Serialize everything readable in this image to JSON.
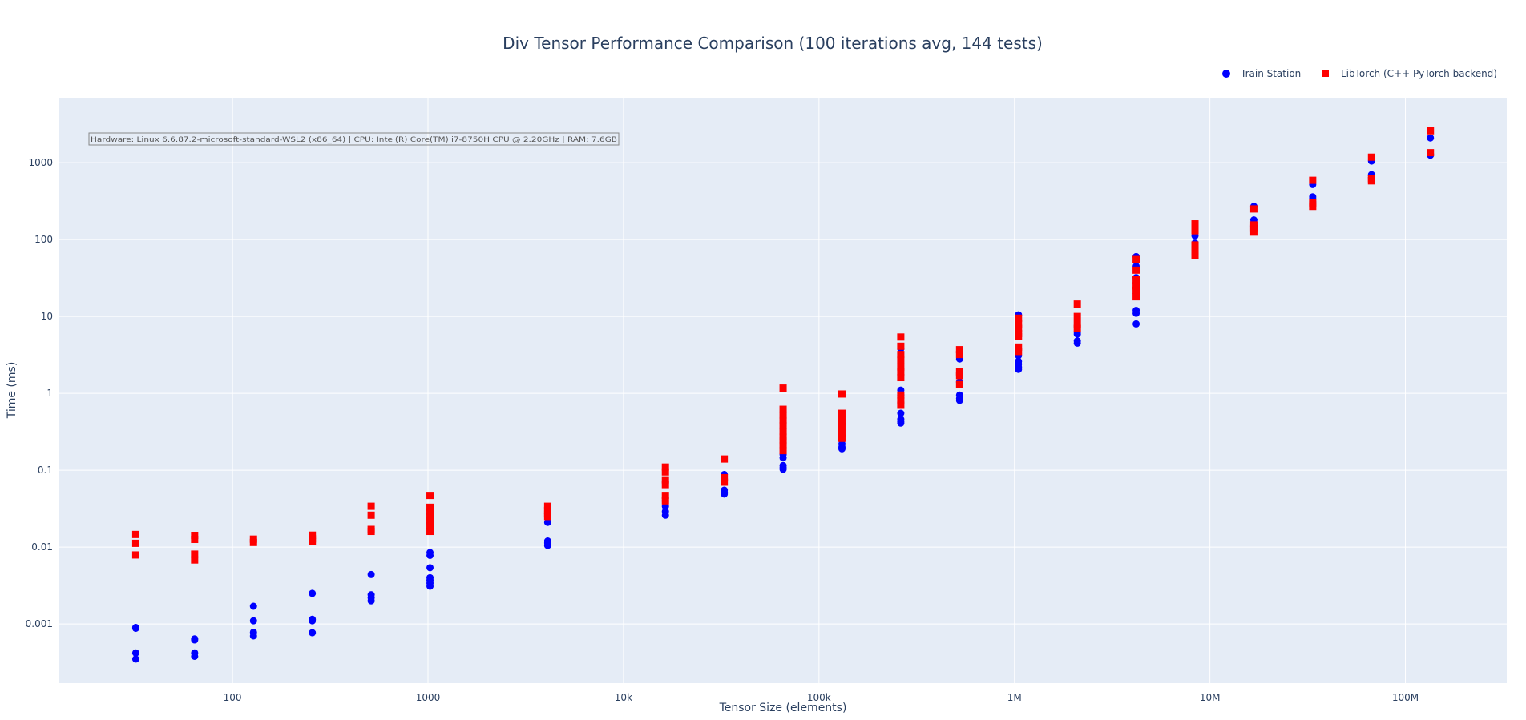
{
  "chart_data": {
    "type": "scatter",
    "title": "Div Tensor Performance Comparison (100 iterations avg, 144 tests)",
    "xlabel": "Tensor Size (elements)",
    "ylabel": "Time (ms)",
    "x_scale": "log",
    "y_scale": "log",
    "xlim": [
      13,
      330000000
    ],
    "ylim": [
      0.00017,
      7000
    ],
    "x_ticks": [
      {
        "value": 100,
        "label": "100"
      },
      {
        "value": 1000,
        "label": "1000"
      },
      {
        "value": 10000,
        "label": "10k"
      },
      {
        "value": 100000,
        "label": "100k"
      },
      {
        "value": 1000000,
        "label": "1M"
      },
      {
        "value": 10000000,
        "label": "10M"
      },
      {
        "value": 100000000,
        "label": "100M"
      }
    ],
    "y_ticks": [
      {
        "value": 0.001,
        "label": "0.001"
      },
      {
        "value": 0.01,
        "label": "0.01"
      },
      {
        "value": 0.1,
        "label": "0.1"
      },
      {
        "value": 1,
        "label": "1"
      },
      {
        "value": 10,
        "label": "10"
      },
      {
        "value": 100,
        "label": "100"
      },
      {
        "value": 1000,
        "label": "1000"
      }
    ],
    "grid": true,
    "legend": "top-right",
    "annotation": "Hardware: Linux 6.6.87.2-microsoft-standard-WSL2 (x86_64) | CPU: Intel(R) Core(TM) i7-8750H CPU @ 2.20GHz | RAM: 7.6GB",
    "series": [
      {
        "name": "Train Station",
        "color": "#0000ff",
        "marker": "circle",
        "points": [
          [
            32,
            0.0009
          ],
          [
            32,
            0.00088
          ],
          [
            32,
            0.00042
          ],
          [
            32,
            0.00035
          ],
          [
            64,
            0.00064
          ],
          [
            64,
            0.00062
          ],
          [
            64,
            0.00042
          ],
          [
            64,
            0.00038
          ],
          [
            128,
            0.0017
          ],
          [
            128,
            0.0011
          ],
          [
            128,
            0.00078
          ],
          [
            128,
            0.0007
          ],
          [
            256,
            0.0025
          ],
          [
            256,
            0.00115
          ],
          [
            256,
            0.0011
          ],
          [
            256,
            0.00077
          ],
          [
            512,
            0.0044
          ],
          [
            512,
            0.0024
          ],
          [
            512,
            0.0022
          ],
          [
            512,
            0.002
          ],
          [
            1024,
            0.0085
          ],
          [
            1024,
            0.0078
          ],
          [
            1024,
            0.0054
          ],
          [
            1024,
            0.004
          ],
          [
            1024,
            0.0037
          ],
          [
            1024,
            0.0034
          ],
          [
            1024,
            0.0031
          ],
          [
            4096,
            0.021
          ],
          [
            4096,
            0.012
          ],
          [
            4096,
            0.0113
          ],
          [
            4096,
            0.0105
          ],
          [
            16384,
            0.04
          ],
          [
            16384,
            0.034
          ],
          [
            16384,
            0.029
          ],
          [
            16384,
            0.026
          ],
          [
            32768,
            0.088
          ],
          [
            32768,
            0.055
          ],
          [
            32768,
            0.052
          ],
          [
            32768,
            0.049
          ],
          [
            65536,
            0.35
          ],
          [
            65536,
            0.16
          ],
          [
            65536,
            0.145
          ],
          [
            65536,
            0.115
          ],
          [
            65536,
            0.108
          ],
          [
            65536,
            0.103
          ],
          [
            131072,
            0.4
          ],
          [
            131072,
            0.22
          ],
          [
            131072,
            0.2
          ],
          [
            131072,
            0.19
          ],
          [
            262144,
            3.8
          ],
          [
            262144,
            1.1
          ],
          [
            262144,
            0.95
          ],
          [
            262144,
            0.55
          ],
          [
            262144,
            0.46
          ],
          [
            262144,
            0.43
          ],
          [
            262144,
            0.41
          ],
          [
            524288,
            2.8
          ],
          [
            524288,
            1.4
          ],
          [
            524288,
            0.95
          ],
          [
            524288,
            0.86
          ],
          [
            524288,
            0.81
          ],
          [
            1048576,
            10.5
          ],
          [
            1048576,
            3.1
          ],
          [
            1048576,
            2.6
          ],
          [
            1048576,
            2.4
          ],
          [
            1048576,
            2.2
          ],
          [
            1048576,
            2.05
          ],
          [
            2097152,
            6.2
          ],
          [
            2097152,
            5.9
          ],
          [
            2097152,
            4.8
          ],
          [
            2097152,
            4.5
          ],
          [
            4194304,
            60
          ],
          [
            4194304,
            45
          ],
          [
            4194304,
            32
          ],
          [
            4194304,
            12
          ],
          [
            4194304,
            11
          ],
          [
            4194304,
            8
          ],
          [
            8388608,
            112
          ],
          [
            8388608,
            90
          ],
          [
            8388608,
            80
          ],
          [
            8388608,
            72
          ],
          [
            16777216,
            270
          ],
          [
            16777216,
            180
          ],
          [
            16777216,
            165
          ],
          [
            16777216,
            150
          ],
          [
            33554432,
            520
          ],
          [
            33554432,
            360
          ],
          [
            33554432,
            340
          ],
          [
            33554432,
            310
          ],
          [
            67108864,
            1050
          ],
          [
            67108864,
            700
          ],
          [
            67108864,
            680
          ],
          [
            67108864,
            640
          ],
          [
            134217728,
            2100
          ],
          [
            134217728,
            1300
          ],
          [
            134217728,
            1250
          ]
        ]
      },
      {
        "name": "LibTorch (C++ PyTorch backend)",
        "color": "#ff0000",
        "marker": "square",
        "points": [
          [
            32,
            0.0146
          ],
          [
            32,
            0.0112
          ],
          [
            32,
            0.0079
          ],
          [
            64,
            0.0142
          ],
          [
            64,
            0.0126
          ],
          [
            64,
            0.0081
          ],
          [
            64,
            0.0068
          ],
          [
            128,
            0.0127
          ],
          [
            128,
            0.0115
          ],
          [
            256,
            0.0143
          ],
          [
            256,
            0.0128
          ],
          [
            256,
            0.0118
          ],
          [
            512,
            0.034
          ],
          [
            512,
            0.026
          ],
          [
            512,
            0.017
          ],
          [
            512,
            0.016
          ],
          [
            1024,
            0.047
          ],
          [
            1024,
            0.033
          ],
          [
            1024,
            0.029
          ],
          [
            1024,
            0.025
          ],
          [
            1024,
            0.022
          ],
          [
            1024,
            0.019
          ],
          [
            1024,
            0.016
          ],
          [
            4096,
            0.034
          ],
          [
            4096,
            0.03
          ],
          [
            4096,
            0.027
          ],
          [
            4096,
            0.025
          ],
          [
            16384,
            0.11
          ],
          [
            16384,
            0.095
          ],
          [
            16384,
            0.075
          ],
          [
            16384,
            0.065
          ],
          [
            16384,
            0.047
          ],
          [
            16384,
            0.04
          ],
          [
            32768,
            0.14
          ],
          [
            32768,
            0.08
          ],
          [
            32768,
            0.07
          ],
          [
            65536,
            1.17
          ],
          [
            65536,
            0.62
          ],
          [
            65536,
            0.52
          ],
          [
            65536,
            0.44
          ],
          [
            65536,
            0.38
          ],
          [
            65536,
            0.32
          ],
          [
            65536,
            0.27
          ],
          [
            65536,
            0.24
          ],
          [
            65536,
            0.21
          ],
          [
            65536,
            0.18
          ],
          [
            131072,
            0.98
          ],
          [
            131072,
            0.55
          ],
          [
            131072,
            0.45
          ],
          [
            131072,
            0.37
          ],
          [
            131072,
            0.3
          ],
          [
            131072,
            0.26
          ],
          [
            262144,
            5.4
          ],
          [
            262144,
            4.1
          ],
          [
            262144,
            3.2
          ],
          [
            262144,
            2.7
          ],
          [
            262144,
            2.2
          ],
          [
            262144,
            1.9
          ],
          [
            262144,
            1.6
          ],
          [
            262144,
            0.95
          ],
          [
            262144,
            0.8
          ],
          [
            262144,
            0.7
          ],
          [
            524288,
            3.7
          ],
          [
            524288,
            3.2
          ],
          [
            524288,
            1.9
          ],
          [
            524288,
            1.7
          ],
          [
            524288,
            1.3
          ],
          [
            1048576,
            9.5
          ],
          [
            1048576,
            8
          ],
          [
            1048576,
            7
          ],
          [
            1048576,
            6
          ],
          [
            1048576,
            5.5
          ],
          [
            1048576,
            4
          ],
          [
            1048576,
            3.5
          ],
          [
            2097152,
            14.5
          ],
          [
            2097152,
            10
          ],
          [
            2097152,
            8
          ],
          [
            2097152,
            7
          ],
          [
            4194304,
            55
          ],
          [
            4194304,
            40
          ],
          [
            4194304,
            30
          ],
          [
            4194304,
            25
          ],
          [
            4194304,
            22
          ],
          [
            4194304,
            18
          ],
          [
            8388608,
            160
          ],
          [
            8388608,
            130
          ],
          [
            8388608,
            85
          ],
          [
            8388608,
            70
          ],
          [
            8388608,
            62
          ],
          [
            16777216,
            250
          ],
          [
            16777216,
            155
          ],
          [
            16777216,
            140
          ],
          [
            16777216,
            125
          ],
          [
            33554432,
            590
          ],
          [
            33554432,
            300
          ],
          [
            33554432,
            270
          ],
          [
            67108864,
            1180
          ],
          [
            67108864,
            620
          ],
          [
            67108864,
            580
          ],
          [
            134217728,
            2600
          ],
          [
            134217728,
            1350
          ]
        ]
      }
    ]
  }
}
